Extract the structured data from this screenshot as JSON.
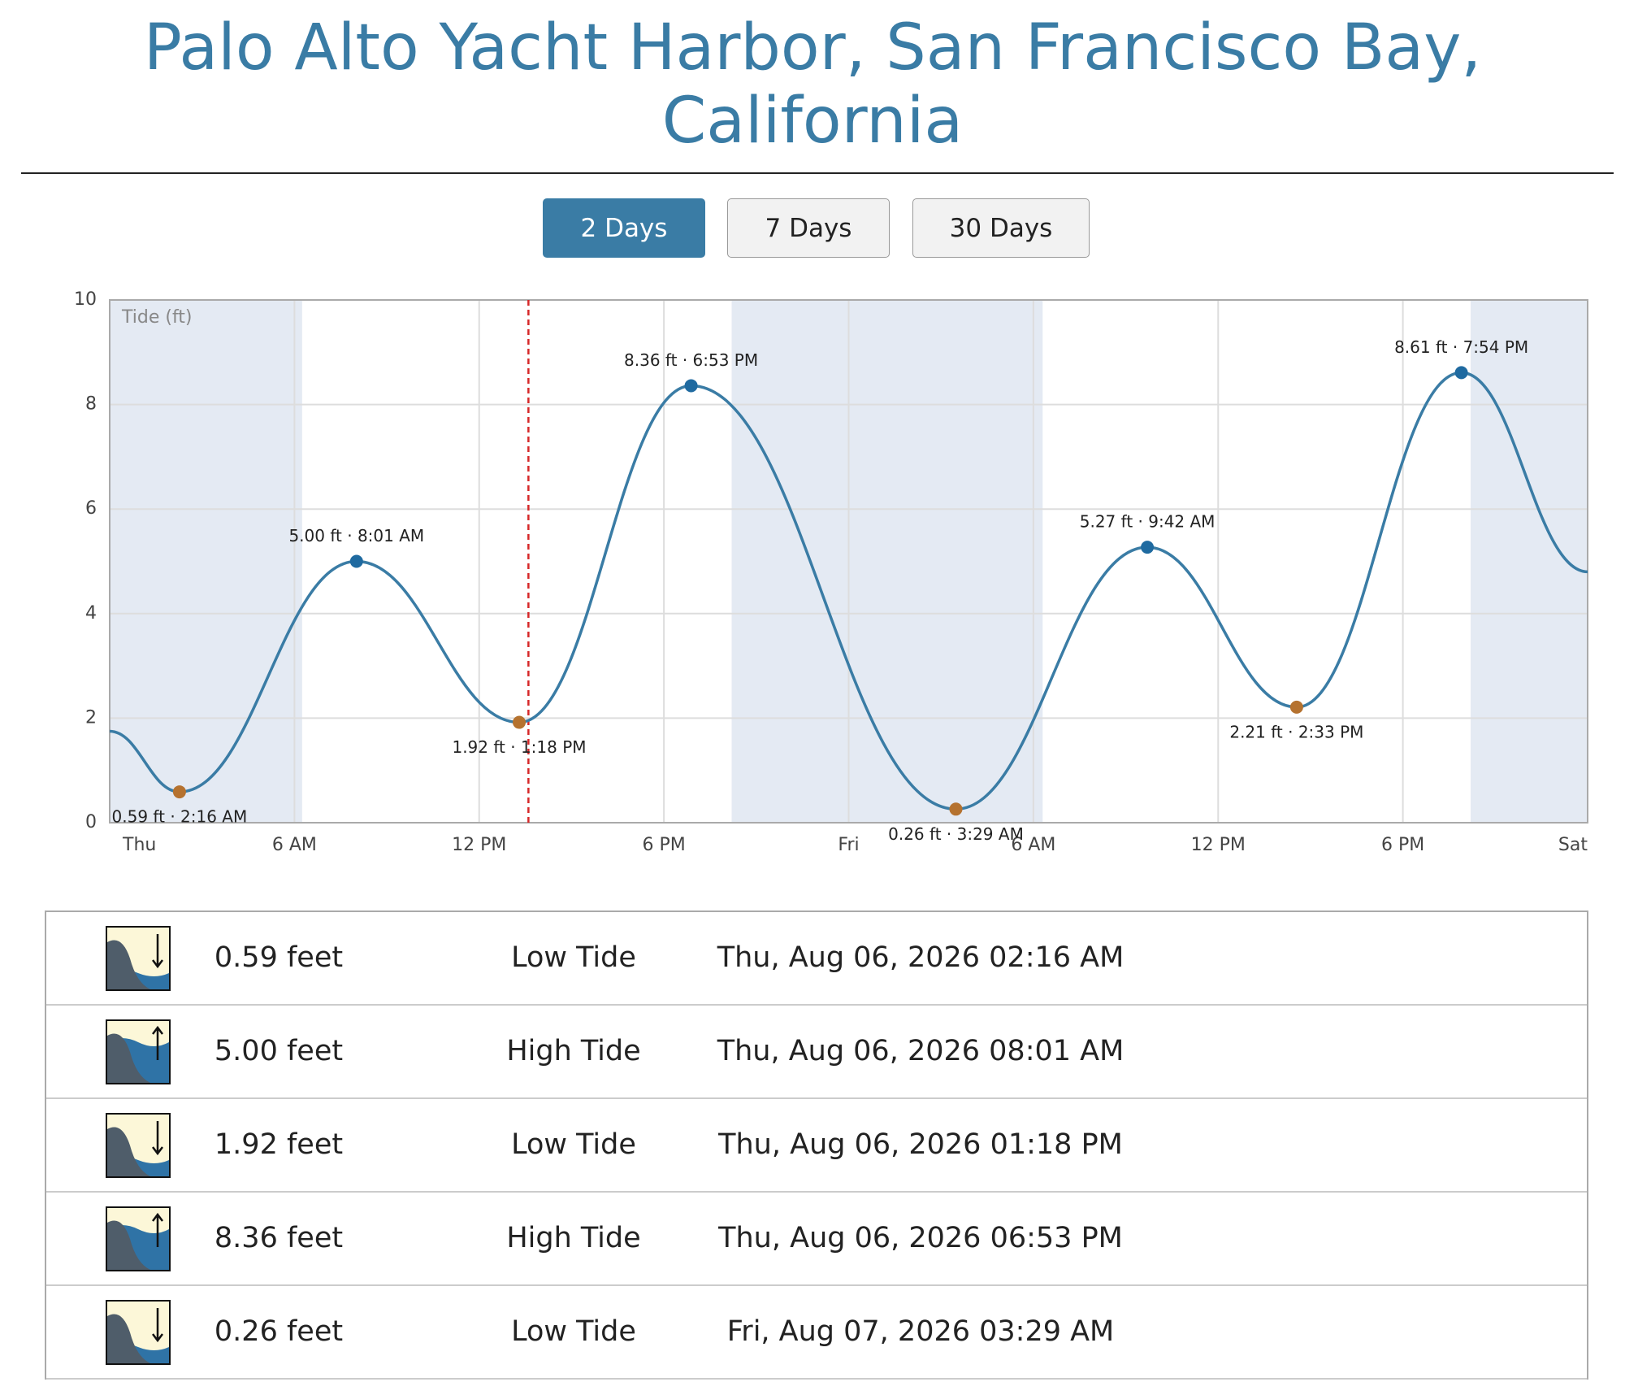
{
  "header": {
    "title": "Palo Alto Yacht Harbor, San Francisco Bay, California"
  },
  "buttons": [
    "2 Days",
    "7 Days",
    "30 Days"
  ],
  "chart_data": {
    "type": "line",
    "y_label": "Tide (ft)",
    "xlim": [
      0,
      48
    ],
    "xticks": [
      {
        "value": 0,
        "label": "Thu"
      },
      {
        "value": 6,
        "label": "6 AM"
      },
      {
        "value": 12,
        "label": "12 PM"
      },
      {
        "value": 18,
        "label": "6 PM"
      },
      {
        "value": 24,
        "label": "Fri"
      },
      {
        "value": 30,
        "label": "6 AM"
      },
      {
        "value": 36,
        "label": "12 PM"
      },
      {
        "value": 42,
        "label": "6 PM"
      },
      {
        "value": 48,
        "label": "Sat"
      }
    ],
    "ylim": [
      0,
      10
    ],
    "yticks": [
      0,
      2,
      4,
      6,
      8,
      10
    ],
    "grid": true,
    "shaded_ranges": [
      [
        0,
        6.25
      ],
      [
        20.2,
        30.3
      ],
      [
        44.2,
        48
      ]
    ],
    "shade_color": "#e4eaf3",
    "now": 13.6,
    "now_color": "#d62728",
    "series": [
      {
        "color": "#3a7ca5",
        "x": [
          0,
          2.267,
          8.017,
          13.3,
          18.883,
          27.483,
          33.7,
          38.55,
          43.9,
          48
        ],
        "values": [
          1.75,
          0.59,
          5.0,
          1.92,
          8.36,
          0.26,
          5.27,
          2.21,
          8.61,
          4.8
        ],
        "value_labels": [
          null,
          "0.59 ft · 2:16 AM",
          "5.00 ft · 8:01 AM",
          "1.92 ft · 1:18 PM",
          "8.36 ft · 6:53 PM",
          "0.26 ft · 3:29 AM",
          "5.27 ft · 9:42 AM",
          "2.21 ft · 2:33 PM",
          "8.61 ft · 7:54 PM",
          null
        ],
        "point_colors": [
          null,
          "#b5722f",
          "#1f6aa0",
          "#b5722f",
          "#1f6aa0",
          "#b5722f",
          "#1f6aa0",
          "#b5722f",
          "#1f6aa0",
          null
        ]
      }
    ]
  },
  "table": {
    "rows": [
      [
        "0.59 feet",
        "Low Tide",
        "Thu, Aug 06, 2026 02:16 AM"
      ],
      [
        "5.00 feet",
        "High Tide",
        "Thu, Aug 06, 2026 08:01 AM"
      ],
      [
        "1.92 feet",
        "Low Tide",
        "Thu, Aug 06, 2026 01:18 PM"
      ],
      [
        "8.36 feet",
        "High Tide",
        "Thu, Aug 06, 2026 06:53 PM"
      ],
      [
        "0.26 feet",
        "Low Tide",
        "Fri, Aug 07, 2026 03:29 AM"
      ]
    ]
  }
}
